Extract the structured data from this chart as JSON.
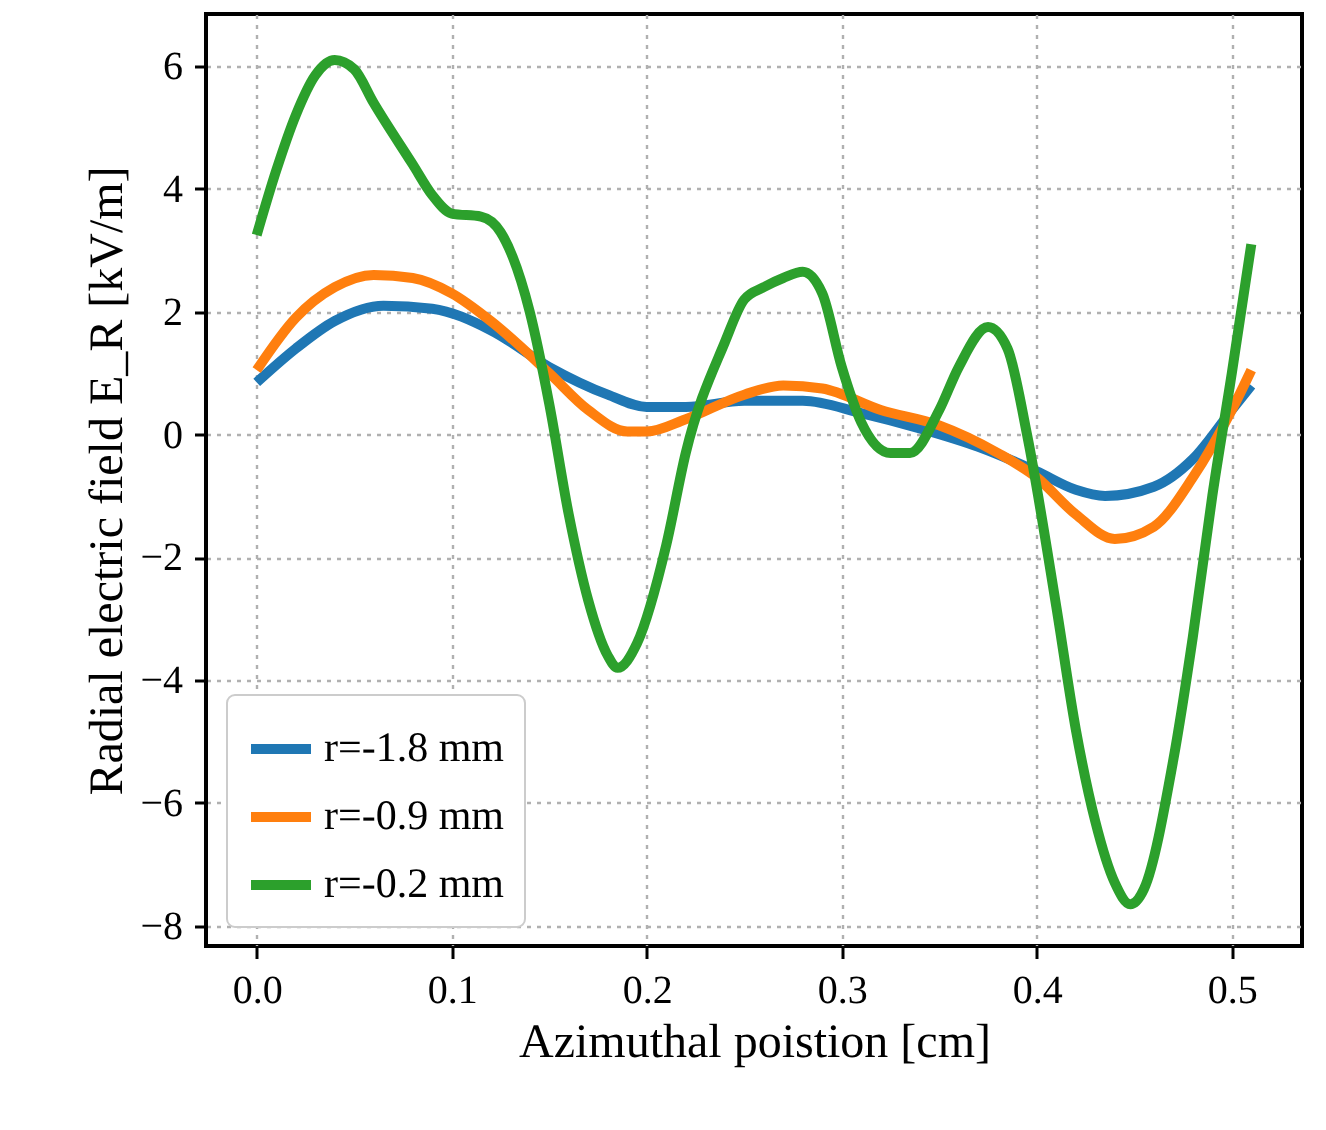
{
  "chart_data": {
    "type": "line",
    "xlabel": "Azimuthal poistion [cm]",
    "ylabel": "Radial electric field E_R [kV/m]",
    "xlim": [
      -0.026,
      0.536
    ],
    "ylim": [
      -8.33,
      6.85
    ],
    "xticks": [
      {
        "value": 0,
        "label": "0.0"
      },
      0.1,
      0.2,
      0.3,
      0.4,
      0.5
    ],
    "yticks": [
      -8,
      -6,
      -4,
      -2,
      0,
      2,
      4,
      6
    ],
    "grid": true,
    "legend": "bottom left",
    "line_style": "solid",
    "marker": "none",
    "series": [
      {
        "name": "r=-1.8 mm",
        "color": "#1f77b4",
        "x": [
          0,
          0.02,
          0.04,
          0.065,
          0.09,
          0.12,
          0.15,
          0.18,
          0.2,
          0.22,
          0.25,
          0.28,
          0.31,
          0.34,
          0.37,
          0.4,
          0.42,
          0.435,
          0.46,
          0.48,
          0.5,
          0.51
        ],
        "values": [
          0.85,
          1.4,
          1.85,
          2.1,
          2.05,
          1.7,
          1.1,
          0.65,
          0.45,
          0.45,
          0.55,
          0.55,
          0.35,
          0.1,
          -0.2,
          -0.6,
          -0.9,
          -1.0,
          -0.85,
          -0.4,
          0.4,
          0.8
        ]
      },
      {
        "name": "r=-0.9 mm",
        "color": "#ff7f0e",
        "x": [
          0,
          0.02,
          0.04,
          0.06,
          0.08,
          0.1,
          0.12,
          0.15,
          0.17,
          0.19,
          0.2,
          0.22,
          0.25,
          0.27,
          0.29,
          0.32,
          0.35,
          0.38,
          0.4,
          0.42,
          0.44,
          0.46,
          0.48,
          0.5,
          0.51
        ],
        "values": [
          1.05,
          1.9,
          2.4,
          2.6,
          2.55,
          2.3,
          1.85,
          1.0,
          0.4,
          0.05,
          0.05,
          0.25,
          0.65,
          0.8,
          0.75,
          0.4,
          0.15,
          -0.3,
          -0.7,
          -1.3,
          -1.7,
          -1.5,
          -0.7,
          0.4,
          1.05
        ]
      },
      {
        "name": "r=-0.2 mm",
        "color": "#2ca02c",
        "x": [
          0,
          0.01,
          0.02,
          0.03,
          0.04,
          0.05,
          0.06,
          0.08,
          0.09,
          0.1,
          0.115,
          0.125,
          0.14,
          0.15,
          0.16,
          0.17,
          0.18,
          0.185,
          0.195,
          0.21,
          0.22,
          0.24,
          0.25,
          0.26,
          0.27,
          0.28,
          0.29,
          0.3,
          0.31,
          0.325,
          0.335,
          0.35,
          0.36,
          0.375,
          0.385,
          0.395,
          0.41,
          0.42,
          0.43,
          0.44,
          0.448,
          0.455,
          0.47,
          0.48,
          0.49,
          0.5,
          0.51
        ],
        "values": [
          3.25,
          4.3,
          5.2,
          5.85,
          6.1,
          5.95,
          5.4,
          4.4,
          3.9,
          3.6,
          3.55,
          3.3,
          2.0,
          0.5,
          -1.3,
          -2.7,
          -3.6,
          -3.8,
          -3.4,
          -1.8,
          -0.3,
          1.5,
          2.2,
          2.4,
          2.55,
          2.65,
          2.3,
          1.1,
          0.2,
          -0.3,
          -0.3,
          0.4,
          1.1,
          1.75,
          1.4,
          0.0,
          -2.8,
          -4.8,
          -6.3,
          -7.3,
          -7.65,
          -7.4,
          -5.3,
          -3.3,
          -1.0,
          1.0,
          3.1
        ]
      }
    ]
  }
}
